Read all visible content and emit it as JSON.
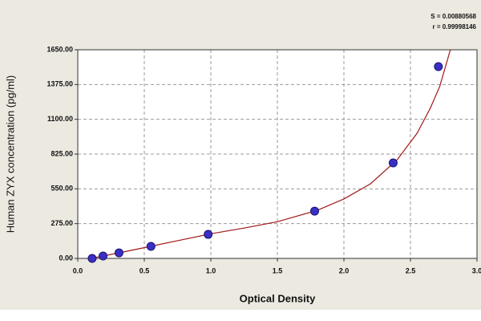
{
  "chart_data": {
    "type": "scatter",
    "x_label": "Optical Density",
    "y_label": "Human  ZYX concentration (pg/ml)",
    "annotations": [
      "S = 0.00880568",
      "r = 0.99998146"
    ],
    "x": [
      0.108,
      0.19,
      0.31,
      0.55,
      0.98,
      1.78,
      2.37,
      2.71
    ],
    "values": [
      0,
      19,
      44,
      95,
      190,
      374,
      755,
      1517
    ],
    "color": "#3a2fc4",
    "curve": {
      "color": "#a01818",
      "x": [
        0.05,
        0.1,
        0.3,
        0.5,
        0.75,
        1.0,
        1.25,
        1.5,
        1.8,
        2.0,
        2.2,
        2.4,
        2.55,
        2.65,
        2.72,
        2.8
      ],
      "y": [
        -10,
        0,
        42,
        85,
        140,
        195,
        240,
        290,
        380,
        470,
        590,
        780,
        990,
        1190,
        1360,
        1650
      ]
    },
    "xlim": [
      0,
      3
    ],
    "ylim": [
      0,
      1650
    ],
    "xticks": [
      {
        "value": 0,
        "label": "0.0"
      },
      0.5,
      {
        "value": 1,
        "label": "1.0"
      },
      1.5,
      {
        "value": 2,
        "label": "2.0"
      },
      2.5,
      {
        "value": 3,
        "label": "3.0"
      }
    ],
    "yticks": [
      {
        "value": 0,
        "label": "0.00"
      },
      {
        "value": 275,
        "label": "275.00"
      },
      {
        "value": 550,
        "label": "550.00"
      },
      {
        "value": 825,
        "label": "825.00"
      },
      {
        "value": 1100,
        "label": "1100.00"
      },
      {
        "value": 1375,
        "label": "1375.00"
      },
      {
        "value": 1650,
        "label": "1650.00"
      }
    ],
    "grid": true
  }
}
